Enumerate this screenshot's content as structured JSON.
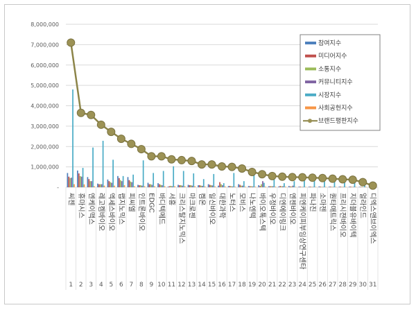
{
  "chart_data": {
    "type": "bar+line",
    "ylim": [
      0,
      8000000
    ],
    "yticks": [
      "-",
      "1,000,000",
      "2,000,000",
      "3,000,000",
      "4,000,000",
      "5,000,000",
      "6,000,000",
      "7,000,000",
      "8,000,000"
    ],
    "grid": true,
    "legend_position": "right",
    "categories": [
      "씨젠",
      "휴마시스",
      "엔케이맥스",
      "레고켐바이오",
      "엑세스바이오",
      "랩지노믹스",
      "피씨엘",
      "인트론바이오",
      "EDGC",
      "바디텍메드",
      "서흥",
      "크리스탈지노믹스",
      "마크로젠",
      "켐온",
      "일신바이오",
      "대한과학",
      "노터스",
      "모비스",
      "나노엔텍",
      "바이오톡스텍",
      "우정바이오",
      "디엔에이링크",
      "엔젠바이오",
      "피엔케이피부임상연구센타",
      "파나진",
      "소마젠",
      "퀀타매트릭스",
      "프리시젼바이오",
      "지더블유바이텍",
      "얼라인드",
      "디엑스앤브이엑스"
    ],
    "ranks": [
      "1",
      "2",
      "3",
      "4",
      "5",
      "6",
      "7",
      "8",
      "9",
      "10",
      "11",
      "12",
      "13",
      "14",
      "15",
      "16",
      "17",
      "18",
      "19",
      "20",
      "21",
      "22",
      "23",
      "24",
      "25",
      "26",
      "27",
      "28",
      "29",
      "30",
      "31"
    ],
    "series": [
      {
        "name": "참여지수",
        "type": "bar",
        "color": "#4f81bd",
        "values": [
          700000,
          820000,
          500000,
          180000,
          380000,
          550000,
          500000,
          120000,
          220000,
          200000,
          30000,
          120000,
          120000,
          100000,
          150000,
          80000,
          60000,
          150000,
          60000,
          100000,
          50000,
          40000,
          60000,
          30000,
          30000,
          40000,
          30000,
          30000,
          30000,
          20000,
          10000
        ]
      },
      {
        "name": "미디어지수",
        "type": "bar",
        "color": "#c0504d",
        "values": [
          520000,
          680000,
          400000,
          150000,
          300000,
          450000,
          350000,
          100000,
          150000,
          150000,
          50000,
          100000,
          100000,
          100000,
          120000,
          250000,
          60000,
          120000,
          50000,
          60000,
          50000,
          60000,
          40000,
          30000,
          30000,
          30000,
          30000,
          30000,
          30000,
          20000,
          10000
        ]
      },
      {
        "name": "소통지수",
        "type": "bar",
        "color": "#9bbb59",
        "values": [
          450000,
          550000,
          300000,
          150000,
          250000,
          350000,
          280000,
          100000,
          150000,
          120000,
          70000,
          100000,
          100000,
          80000,
          100000,
          150000,
          50000,
          80000,
          50000,
          150000,
          50000,
          50000,
          40000,
          20000,
          20000,
          20000,
          20000,
          20000,
          20000,
          20000,
          10000
        ]
      },
      {
        "name": "커뮤니티지수",
        "type": "bar",
        "color": "#8064a2",
        "values": [
          470000,
          520000,
          300000,
          150000,
          220000,
          300000,
          250000,
          80000,
          120000,
          100000,
          50000,
          80000,
          80000,
          70000,
          90000,
          100000,
          40000,
          80000,
          40000,
          300000,
          50000,
          50000,
          80000,
          20000,
          20000,
          20000,
          20000,
          20000,
          20000,
          10000,
          10000
        ]
      },
      {
        "name": "시장지수",
        "type": "bar",
        "color": "#4bacc6",
        "values": [
          4800000,
          950000,
          1950000,
          2280000,
          1350000,
          550000,
          620000,
          1320000,
          700000,
          800000,
          1030000,
          800000,
          680000,
          400000,
          650000,
          200000,
          700000,
          300000,
          750000,
          220000,
          450000,
          200000,
          300000,
          350000,
          350000,
          400000,
          350000,
          300000,
          250000,
          200000,
          150000
        ]
      },
      {
        "name": "사회공헌지수",
        "type": "bar",
        "color": "#f79646",
        "values": [
          150000,
          140000,
          50000,
          80000,
          80000,
          100000,
          50000,
          50000,
          50000,
          50000,
          50000,
          50000,
          50000,
          40000,
          40000,
          40000,
          30000,
          30000,
          30000,
          30000,
          30000,
          30000,
          20000,
          20000,
          20000,
          20000,
          20000,
          20000,
          20000,
          20000,
          10000
        ]
      },
      {
        "name": "브랜드평판지수",
        "type": "line",
        "color": "#8c8448",
        "values": [
          7100000,
          3650000,
          3550000,
          3070000,
          2720000,
          2380000,
          2130000,
          1870000,
          1520000,
          1520000,
          1370000,
          1330000,
          1290000,
          1120000,
          1120000,
          1020000,
          1000000,
          920000,
          750000,
          640000,
          550000,
          520000,
          500000,
          490000,
          470000,
          450000,
          420000,
          390000,
          370000,
          250000,
          80000
        ]
      }
    ]
  }
}
